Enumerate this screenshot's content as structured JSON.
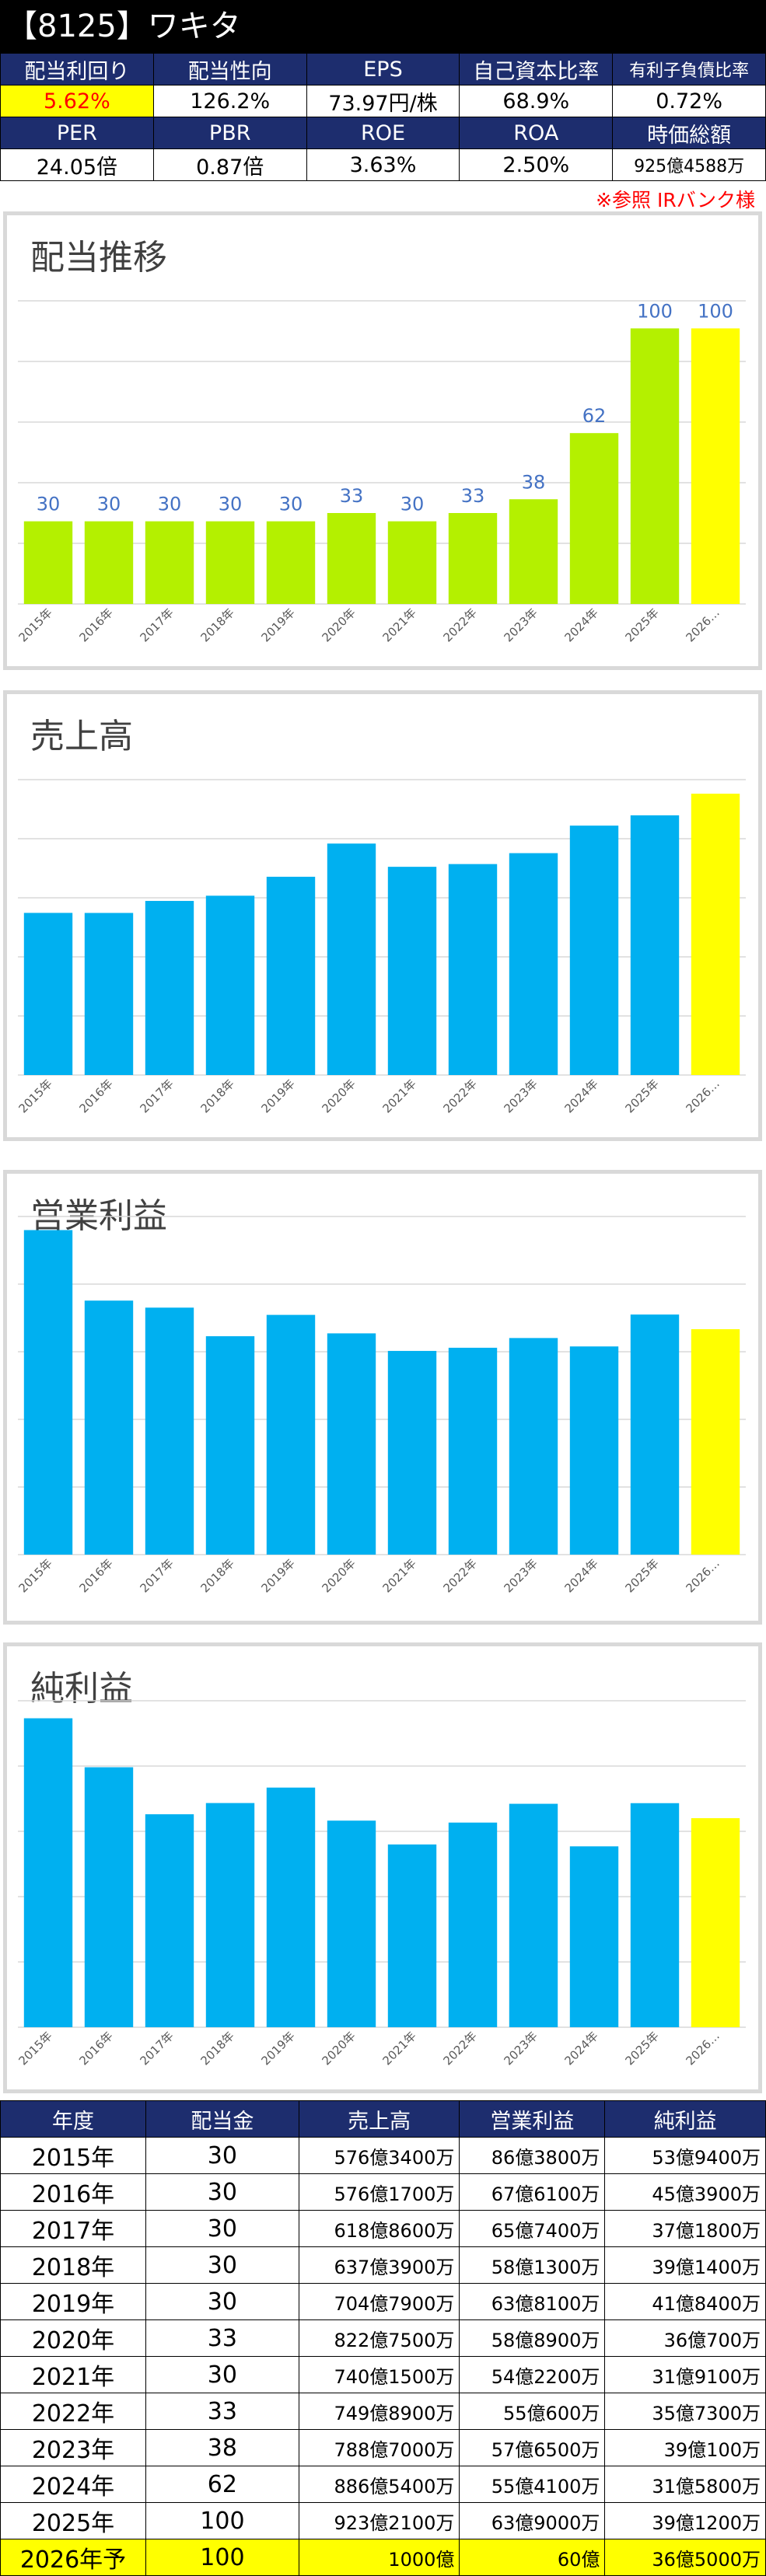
{
  "header": {
    "title": "【8125】ワキタ"
  },
  "metrics": {
    "row1_labels": [
      "配当利回り",
      "配当性向",
      "EPS",
      "自己資本比率",
      "有利子負債比率"
    ],
    "row1_values": [
      "5.62%",
      "126.2%",
      "73.97円/株",
      "68.9%",
      "0.72%"
    ],
    "row2_labels": [
      "PER",
      "PBR",
      "ROE",
      "ROA",
      "時価総額"
    ],
    "row2_values": [
      "24.05倍",
      "0.87倍",
      "3.63%",
      "2.50%",
      "925億4588万"
    ]
  },
  "source_note": "※参照 IRバンク様",
  "colors": {
    "bar": "#00b0f0",
    "dividend_bar": "#b4f000",
    "forecast_bar": "#ffff00",
    "header_bg": "#1d2d6e",
    "label_blue": "#4472c4"
  },
  "chart_data": [
    {
      "type": "bar",
      "title": "配当推移",
      "categories": [
        "2015年",
        "2016年",
        "2017年",
        "2018年",
        "2019年",
        "2020年",
        "2021年",
        "2022年",
        "2023年",
        "2024年",
        "2025年",
        "2026…"
      ],
      "values": [
        30,
        30,
        30,
        30,
        30,
        33,
        30,
        33,
        38,
        62,
        100,
        100
      ],
      "data_labels": true,
      "ylim": [
        0,
        110
      ],
      "grid": true,
      "legend": "none"
    },
    {
      "type": "bar",
      "title": "売上高",
      "categories": [
        "2015年",
        "2016年",
        "2017年",
        "2018年",
        "2019年",
        "2020年",
        "2021年",
        "2022年",
        "2023年",
        "2024年",
        "2025年",
        "2026…"
      ],
      "values": [
        576.34,
        576.17,
        618.86,
        637.39,
        704.79,
        822.75,
        740.15,
        749.89,
        788.7,
        886.54,
        923.21,
        1000
      ],
      "unit": "億円",
      "ylim": [
        0,
        1050
      ],
      "grid": true,
      "legend": "none"
    },
    {
      "type": "bar",
      "title": "営業利益",
      "categories": [
        "2015年",
        "2016年",
        "2017年",
        "2018年",
        "2019年",
        "2020年",
        "2021年",
        "2022年",
        "2023年",
        "2024年",
        "2025年",
        "2026…"
      ],
      "values": [
        86.38,
        67.61,
        65.74,
        58.13,
        63.81,
        58.89,
        54.22,
        55.06,
        57.65,
        55.41,
        63.9,
        60
      ],
      "unit": "億円",
      "ylim": [
        0,
        90
      ],
      "grid": true,
      "legend": "none"
    },
    {
      "type": "bar",
      "title": "純利益",
      "categories": [
        "2015年",
        "2016年",
        "2017年",
        "2018年",
        "2019年",
        "2020年",
        "2021年",
        "2022年",
        "2023年",
        "2024年",
        "2025年",
        "2026…"
      ],
      "values": [
        53.94,
        45.39,
        37.18,
        39.14,
        41.84,
        36.07,
        31.91,
        35.73,
        39.01,
        31.58,
        39.12,
        36.5
      ],
      "unit": "億円",
      "ylim": [
        0,
        57
      ],
      "grid": true,
      "legend": "none"
    }
  ],
  "table": {
    "headers": [
      "年度",
      "配当金",
      "売上高",
      "営業利益",
      "純利益"
    ],
    "rows": [
      [
        "2015年",
        "30",
        "576億3400万",
        "86億3800万",
        "53億9400万"
      ],
      [
        "2016年",
        "30",
        "576億1700万",
        "67億6100万",
        "45億3900万"
      ],
      [
        "2017年",
        "30",
        "618億8600万",
        "65億7400万",
        "37億1800万"
      ],
      [
        "2018年",
        "30",
        "637億3900万",
        "58億1300万",
        "39億1400万"
      ],
      [
        "2019年",
        "30",
        "704億7900万",
        "63億8100万",
        "41億8400万"
      ],
      [
        "2020年",
        "33",
        "822億7500万",
        "58億8900万",
        "36億700万"
      ],
      [
        "2021年",
        "30",
        "740億1500万",
        "54億2200万",
        "31億9100万"
      ],
      [
        "2022年",
        "33",
        "749億8900万",
        "55億600万",
        "35億7300万"
      ],
      [
        "2023年",
        "38",
        "788億7000万",
        "57億6500万",
        "39億100万"
      ],
      [
        "2024年",
        "62",
        "886億5400万",
        "55億4100万",
        "31億5800万"
      ],
      [
        "2025年",
        "100",
        "923億2100万",
        "63億9000万",
        "39億1200万"
      ],
      [
        "2026年予",
        "100",
        "1000億",
        "60億",
        "36億5000万"
      ]
    ]
  }
}
